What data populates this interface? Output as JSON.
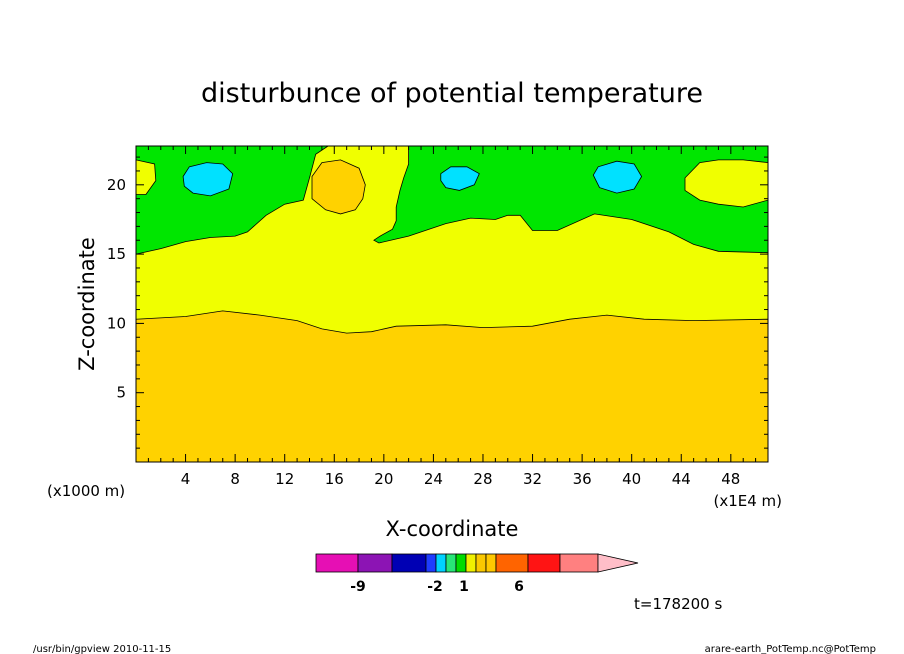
{
  "chart_data": {
    "type": "contour",
    "title": "disturbunce of potential temperature",
    "xlabel": "X-coordinate",
    "ylabel": "Z-coordinate",
    "x_unit_left": "(x1000 m)",
    "x_unit_right": "(x1E4 m)",
    "xlim": [
      0,
      51
    ],
    "ylim": [
      0,
      22.8
    ],
    "x_ticks": [
      4,
      8,
      12,
      16,
      20,
      24,
      28,
      32,
      36,
      40,
      44,
      48
    ],
    "y_ticks": [
      5,
      10,
      15,
      20
    ],
    "levels": [
      {
        "color": "#e60fb4"
      },
      {
        "color": "#8c14b4"
      },
      {
        "color": "#0000b4"
      },
      {
        "color": "#1e3cff"
      },
      {
        "color": "#00d2ff"
      },
      {
        "color": "#28e678"
      },
      {
        "color": "#00dc00"
      },
      {
        "color": "#f0f000"
      },
      {
        "color": "#fac800"
      },
      {
        "color": "#ffc800"
      },
      {
        "color": "#ff6400"
      },
      {
        "color": "#ff1414"
      },
      {
        "color": "#ff8080"
      },
      {
        "color": "#ffbec8"
      }
    ],
    "colorbar_labels": [
      "-9",
      "-2",
      "1",
      "6"
    ],
    "regions": {
      "green_color": "#00e600",
      "yellow_color": "#f0ff00",
      "orange_color": "#ffd200",
      "cyan_color": "#00e1ff",
      "yellow_lower_boundary": [
        [
          0,
          10.3
        ],
        [
          4,
          10.5
        ],
        [
          7,
          10.9
        ],
        [
          10,
          10.6
        ],
        [
          13,
          10.2
        ],
        [
          15,
          9.6
        ],
        [
          17,
          9.3
        ],
        [
          19,
          9.4
        ],
        [
          21,
          9.8
        ],
        [
          25,
          9.9
        ],
        [
          28,
          9.7
        ],
        [
          32,
          9.8
        ],
        [
          35,
          10.3
        ],
        [
          38,
          10.6
        ],
        [
          41,
          10.3
        ],
        [
          45,
          10.2
        ],
        [
          51,
          10.3
        ]
      ],
      "green_lower_boundary": [
        [
          0,
          15
        ],
        [
          2,
          15.4
        ],
        [
          4,
          15.9
        ],
        [
          6,
          16.2
        ],
        [
          8,
          16.3
        ],
        [
          9,
          16.6
        ],
        [
          10.5,
          17.8
        ],
        [
          12,
          18.6
        ],
        [
          13.5,
          18.9
        ],
        [
          14,
          20.5
        ],
        [
          14.5,
          22.2
        ],
        [
          15.5,
          22.8
        ]
      ],
      "green_upper_right_boundary": [
        [
          22,
          22.8
        ],
        [
          22,
          21.5
        ],
        [
          21.6,
          20.5
        ],
        [
          21.3,
          19.6
        ],
        [
          21,
          18.4
        ],
        [
          21,
          17.4
        ],
        [
          20.7,
          16.8
        ],
        [
          19.7,
          16.3
        ],
        [
          19.2,
          16
        ],
        [
          19.6,
          15.8
        ],
        [
          22,
          16.3
        ],
        [
          25,
          17.2
        ],
        [
          27,
          17.6
        ],
        [
          29,
          17.5
        ],
        [
          30,
          17.8
        ],
        [
          31,
          17.8
        ],
        [
          32,
          16.7
        ],
        [
          34,
          16.7
        ],
        [
          37,
          17.9
        ],
        [
          40,
          17.5
        ],
        [
          43,
          16.6
        ],
        [
          45,
          15.7
        ],
        [
          47,
          15.2
        ],
        [
          51,
          15.1
        ]
      ],
      "upper_left_blob": [
        [
          0,
          21.8
        ],
        [
          1.5,
          21.5
        ],
        [
          1.6,
          20.3
        ],
        [
          0.8,
          19.3
        ],
        [
          0,
          19.3
        ]
      ],
      "orange_blob": [
        [
          14.2,
          19
        ],
        [
          15.3,
          18.2
        ],
        [
          16.5,
          17.9
        ],
        [
          17.7,
          18.2
        ],
        [
          18.3,
          19
        ],
        [
          18.5,
          20
        ],
        [
          18,
          21.2
        ],
        [
          16.5,
          21.8
        ],
        [
          15,
          21.6
        ],
        [
          14.2,
          20.6
        ]
      ],
      "upper_right_blob": [
        [
          44.3,
          20.5
        ],
        [
          45.5,
          21.6
        ],
        [
          47,
          21.8
        ],
        [
          49,
          21.8
        ],
        [
          51,
          21.6
        ],
        [
          51,
          18.9
        ],
        [
          49,
          18.4
        ],
        [
          47,
          18.6
        ],
        [
          45.5,
          18.9
        ],
        [
          44.3,
          19.6
        ]
      ],
      "cyan_blobs": [
        [
          [
            3.8,
            20.6
          ],
          [
            4.3,
            21.3
          ],
          [
            5.7,
            21.6
          ],
          [
            7,
            21.5
          ],
          [
            7.8,
            20.8
          ],
          [
            7.5,
            19.7
          ],
          [
            6,
            19.2
          ],
          [
            4.6,
            19.4
          ],
          [
            3.9,
            19.9
          ]
        ],
        [
          [
            24.6,
            20.8
          ],
          [
            25.4,
            21.3
          ],
          [
            26.7,
            21.3
          ],
          [
            27.7,
            20.8
          ],
          [
            27.3,
            20
          ],
          [
            26.1,
            19.6
          ],
          [
            25,
            19.8
          ],
          [
            24.6,
            20.3
          ]
        ],
        [
          [
            36.9,
            20.7
          ],
          [
            37.3,
            21.3
          ],
          [
            38.8,
            21.7
          ],
          [
            40.2,
            21.5
          ],
          [
            40.8,
            20.6
          ],
          [
            40.2,
            19.7
          ],
          [
            38.8,
            19.4
          ],
          [
            37.4,
            19.8
          ]
        ]
      ]
    }
  },
  "time_label": "t=178200 s",
  "footer_left": "/usr/bin/gpview  2010-11-15",
  "footer_right": "arare-earth_PotTemp.nc@PotTemp"
}
